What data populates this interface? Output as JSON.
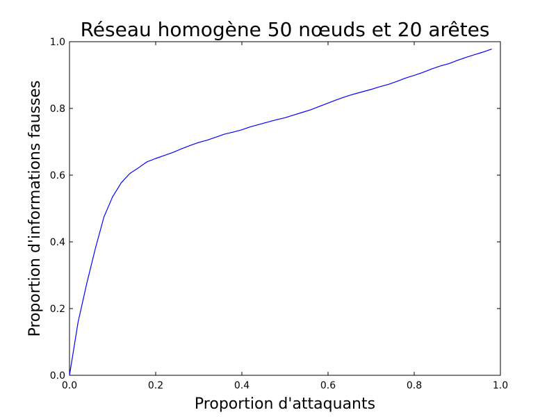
{
  "chart_data": {
    "type": "line",
    "title": "Réseau homogène 50 nœuds et 20 arêtes",
    "xlabel": "Proportion d'attaquants",
    "ylabel": "Proportion d'informations fausses",
    "xlim": [
      0.0,
      1.0
    ],
    "ylim": [
      0.0,
      1.0
    ],
    "xticks": [
      "0.0",
      "0.2",
      "0.4",
      "0.6",
      "0.8",
      "1.0"
    ],
    "yticks": [
      "0.0",
      "0.2",
      "0.4",
      "0.6",
      "0.8",
      "1.0"
    ],
    "grid": false,
    "series": [
      {
        "color": "#0000ff",
        "x": [
          0.0,
          0.02,
          0.04,
          0.06,
          0.08,
          0.1,
          0.12,
          0.14,
          0.16,
          0.18,
          0.2,
          0.22,
          0.24,
          0.26,
          0.28,
          0.3,
          0.32,
          0.34,
          0.36,
          0.38,
          0.4,
          0.42,
          0.44,
          0.46,
          0.48,
          0.5,
          0.52,
          0.54,
          0.56,
          0.58,
          0.6,
          0.62,
          0.64,
          0.66,
          0.68,
          0.7,
          0.72,
          0.74,
          0.76,
          0.78,
          0.8,
          0.82,
          0.84,
          0.86,
          0.88,
          0.9,
          0.92,
          0.94,
          0.96,
          0.98
        ],
        "y": [
          0.0,
          0.16,
          0.275,
          0.38,
          0.475,
          0.535,
          0.577,
          0.605,
          0.622,
          0.64,
          0.65,
          0.659,
          0.668,
          0.679,
          0.689,
          0.698,
          0.705,
          0.714,
          0.723,
          0.729,
          0.736,
          0.745,
          0.752,
          0.759,
          0.766,
          0.772,
          0.78,
          0.788,
          0.796,
          0.806,
          0.816,
          0.826,
          0.835,
          0.843,
          0.85,
          0.857,
          0.865,
          0.872,
          0.881,
          0.891,
          0.899,
          0.908,
          0.918,
          0.927,
          0.934,
          0.944,
          0.953,
          0.961,
          0.969,
          0.978
        ]
      }
    ]
  }
}
